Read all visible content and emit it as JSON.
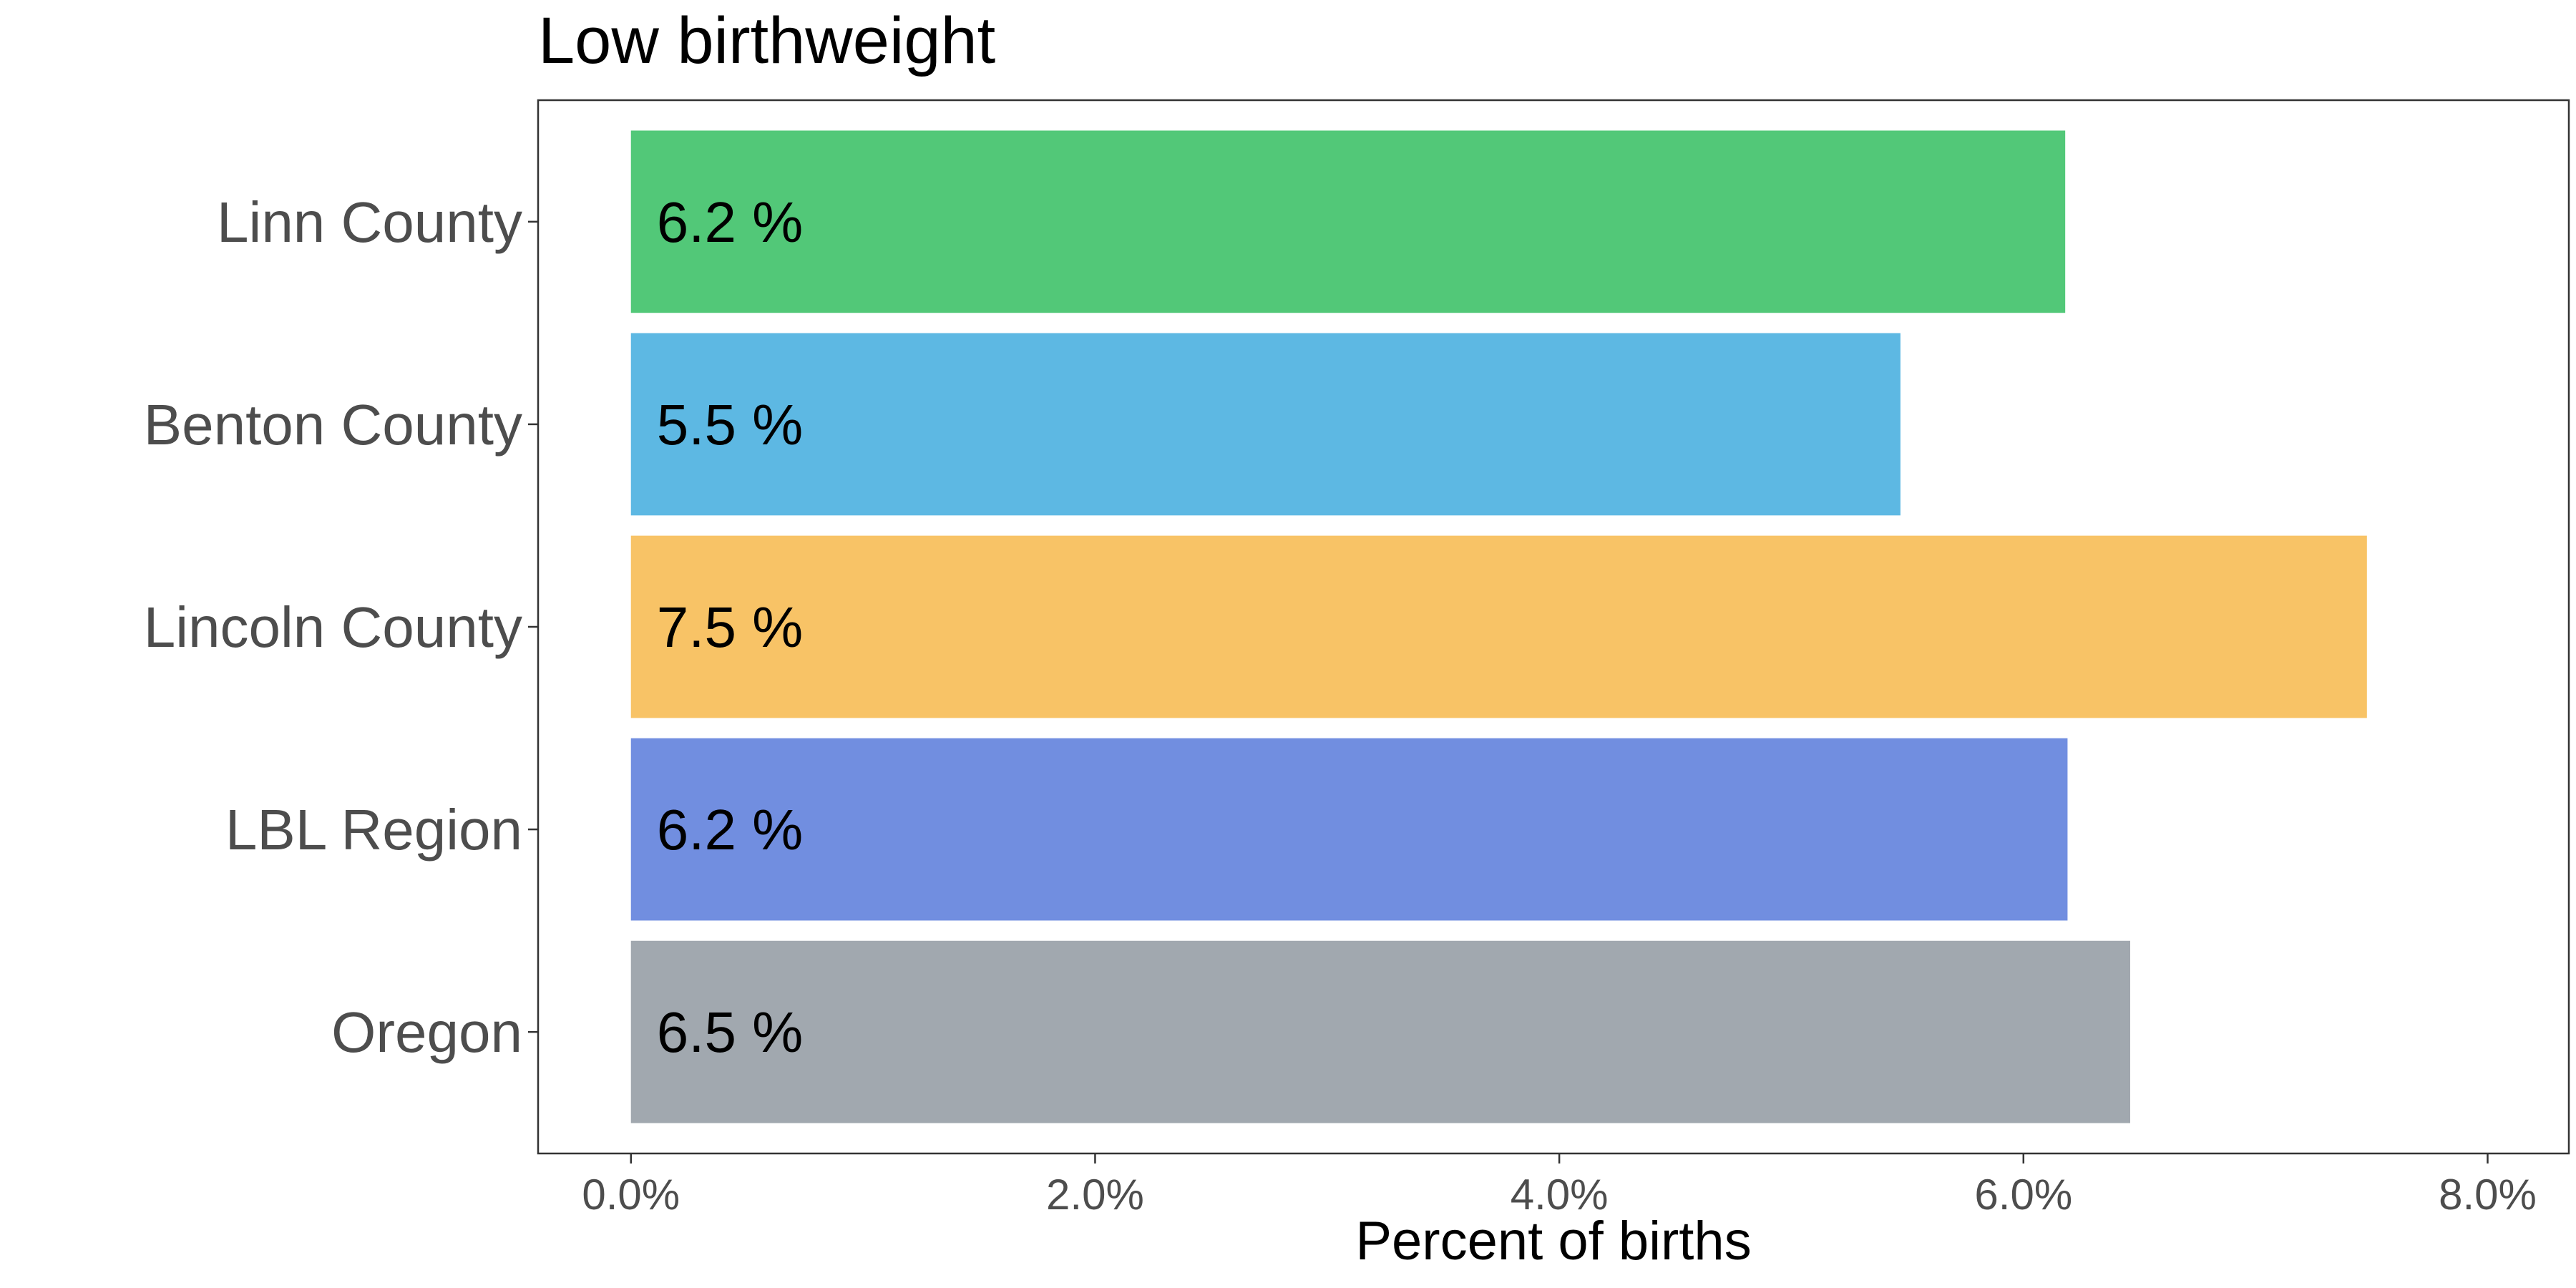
{
  "chart_data": {
    "type": "bar",
    "orientation": "horizontal",
    "title": "Low birthweight",
    "xlabel": "Percent of births",
    "ylabel": "",
    "categories": [
      "Linn County",
      "Benton County",
      "Lincoln County",
      "LBL Region",
      "Oregon"
    ],
    "values": [
      6.18,
      5.47,
      7.48,
      6.19,
      6.46
    ],
    "data_labels": [
      "6.2 %",
      "5.5 %",
      "7.5 %",
      "6.2 %",
      "6.5 %"
    ],
    "colors": [
      "#52C878",
      "#5DB8E3",
      "#F8C366",
      "#718EE0",
      "#A1A8AF"
    ],
    "xlim": [
      -0.4,
      8.35
    ],
    "x_ticks": [
      0,
      2,
      4,
      6,
      8
    ],
    "x_tick_labels": [
      "0.0%",
      "2.0%",
      "4.0%",
      "6.0%",
      "8.0%"
    ],
    "grid": false,
    "legend": "none"
  }
}
